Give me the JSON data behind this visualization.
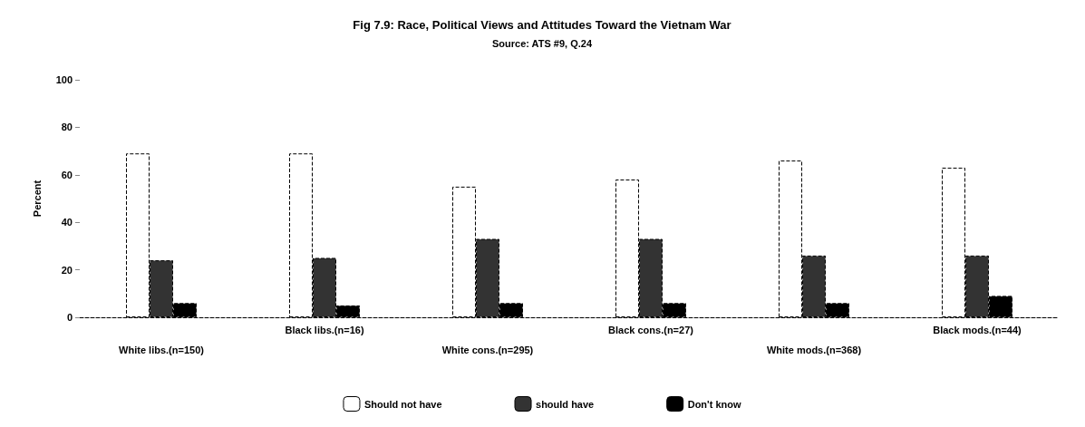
{
  "chart_data": {
    "type": "bar",
    "title": "Fig 7.9: Race, Political Views and Attitudes Toward the Vietnam War",
    "subtitle": "Source: ATS #9, Q.24",
    "ylabel": "Percent",
    "categories": [
      "White libs.(n=150)",
      "Black libs.(n=16)",
      "White cons.(n=295)",
      "Black cons.(n=27)",
      "White mods.(n=368)",
      "Black mods.(n=44)"
    ],
    "series": [
      {
        "name": "Should not have",
        "color": "#ffffff",
        "values": [
          69,
          69,
          55,
          58,
          66,
          63
        ]
      },
      {
        "name": "should have",
        "color": "#333333",
        "values": [
          24,
          25,
          33,
          33,
          26,
          26
        ]
      },
      {
        "name": "Don't know",
        "color": "#000000",
        "values": [
          6,
          5,
          6,
          6,
          6,
          9
        ]
      }
    ],
    "ylim": [
      0,
      100
    ],
    "yticks": [
      0,
      20,
      40,
      60,
      80,
      100
    ],
    "grid": false,
    "legend": "bottom"
  }
}
